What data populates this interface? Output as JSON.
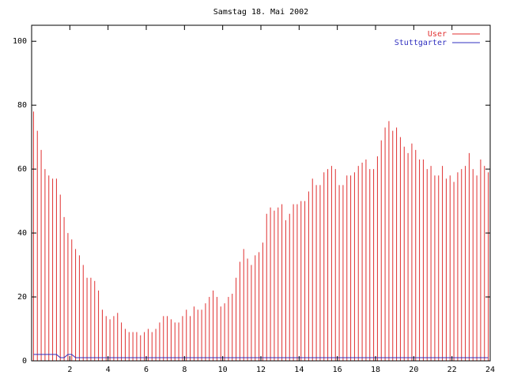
{
  "chart_data": {
    "type": "impulses",
    "title": "Samstag 18. Mai 2002",
    "x": [
      0.1,
      0.3,
      0.5,
      0.7,
      0.9,
      1.1,
      1.3,
      1.5,
      1.7,
      1.9,
      2.1,
      2.3,
      2.5,
      2.7,
      2.9,
      3.1,
      3.3,
      3.5,
      3.7,
      3.9,
      4.1,
      4.3,
      4.5,
      4.7,
      4.9,
      5.1,
      5.3,
      5.5,
      5.7,
      5.9,
      6.1,
      6.3,
      6.5,
      6.7,
      6.9,
      7.1,
      7.3,
      7.5,
      7.7,
      7.9,
      8.1,
      8.3,
      8.5,
      8.7,
      8.9,
      9.1,
      9.3,
      9.5,
      9.7,
      9.9,
      10.1,
      10.3,
      10.5,
      10.7,
      10.9,
      11.1,
      11.3,
      11.5,
      11.7,
      11.9,
      12.1,
      12.3,
      12.5,
      12.7,
      12.9,
      13.1,
      13.3,
      13.5,
      13.7,
      13.9,
      14.1,
      14.3,
      14.5,
      14.7,
      14.9,
      15.1,
      15.3,
      15.5,
      15.7,
      15.9,
      16.1,
      16.3,
      16.5,
      16.7,
      16.9,
      17.1,
      17.3,
      17.5,
      17.7,
      17.9,
      18.1,
      18.3,
      18.5,
      18.7,
      18.9,
      19.1,
      19.3,
      19.5,
      19.7,
      19.9,
      20.1,
      20.3,
      20.5,
      20.7,
      20.9,
      21.1,
      21.3,
      21.5,
      21.7,
      21.9,
      22.1,
      22.3,
      22.5,
      22.7,
      22.9,
      23.1,
      23.3,
      23.5,
      23.7,
      23.9
    ],
    "series": [
      {
        "name": "User",
        "color": "#e03030",
        "style": "impulses",
        "values": [
          78,
          72,
          66,
          60,
          58,
          57,
          57,
          52,
          45,
          40,
          38,
          35,
          33,
          30,
          26,
          26,
          25,
          22,
          16,
          14,
          13,
          14,
          15,
          12,
          10,
          9,
          9,
          9,
          8,
          9,
          10,
          9,
          10,
          12,
          14,
          14,
          13,
          12,
          12,
          14,
          16,
          14,
          17,
          16,
          16,
          18,
          20,
          22,
          20,
          17,
          18,
          20,
          21,
          26,
          31,
          35,
          32,
          30,
          33,
          34,
          37,
          46,
          48,
          47,
          48,
          49,
          44,
          46,
          49,
          49,
          50,
          50,
          53,
          57,
          55,
          55,
          59,
          60,
          61,
          60,
          55,
          55,
          58,
          58,
          59,
          61,
          62,
          63,
          60,
          60,
          64,
          69,
          73,
          75,
          72,
          73,
          70,
          67,
          65,
          68,
          66,
          63,
          63,
          60,
          61,
          58,
          58,
          61,
          57,
          58,
          56,
          59,
          60,
          61,
          65,
          60,
          58,
          63,
          61,
          59
        ]
      },
      {
        "name": "Stuttgarter",
        "color": "#3030c0",
        "style": "line",
        "values": [
          2,
          2,
          2,
          2,
          2,
          2,
          2,
          1,
          1,
          2,
          2,
          1,
          1,
          1,
          1,
          1,
          1,
          1,
          1,
          1,
          1,
          1,
          1,
          1,
          1,
          1,
          1,
          1,
          1,
          1,
          1,
          1,
          1,
          1,
          1,
          1,
          1,
          1,
          1,
          1,
          1,
          1,
          1,
          1,
          1,
          1,
          1,
          1,
          1,
          1,
          1,
          1,
          1,
          1,
          1,
          1,
          1,
          1,
          1,
          1,
          1,
          1,
          1,
          1,
          1,
          1,
          1,
          1,
          1,
          1,
          1,
          1,
          1,
          1,
          1,
          1,
          1,
          1,
          1,
          1,
          1,
          1,
          1,
          1,
          1,
          1,
          1,
          1,
          1,
          1,
          1,
          1,
          1,
          1,
          1,
          1,
          1,
          1,
          1,
          1,
          1,
          1,
          1,
          1,
          1,
          1,
          1,
          1,
          1,
          1,
          1,
          1,
          1,
          1,
          1,
          1,
          1,
          1,
          1,
          1
        ]
      }
    ],
    "xlim": [
      0,
      24
    ],
    "xticks": [
      2,
      4,
      6,
      8,
      10,
      12,
      14,
      16,
      18,
      20,
      22,
      24
    ],
    "ylim": [
      0,
      105
    ],
    "yticks": [
      0,
      20,
      40,
      60,
      80,
      100
    ],
    "grid": false,
    "legend": "top-right"
  }
}
